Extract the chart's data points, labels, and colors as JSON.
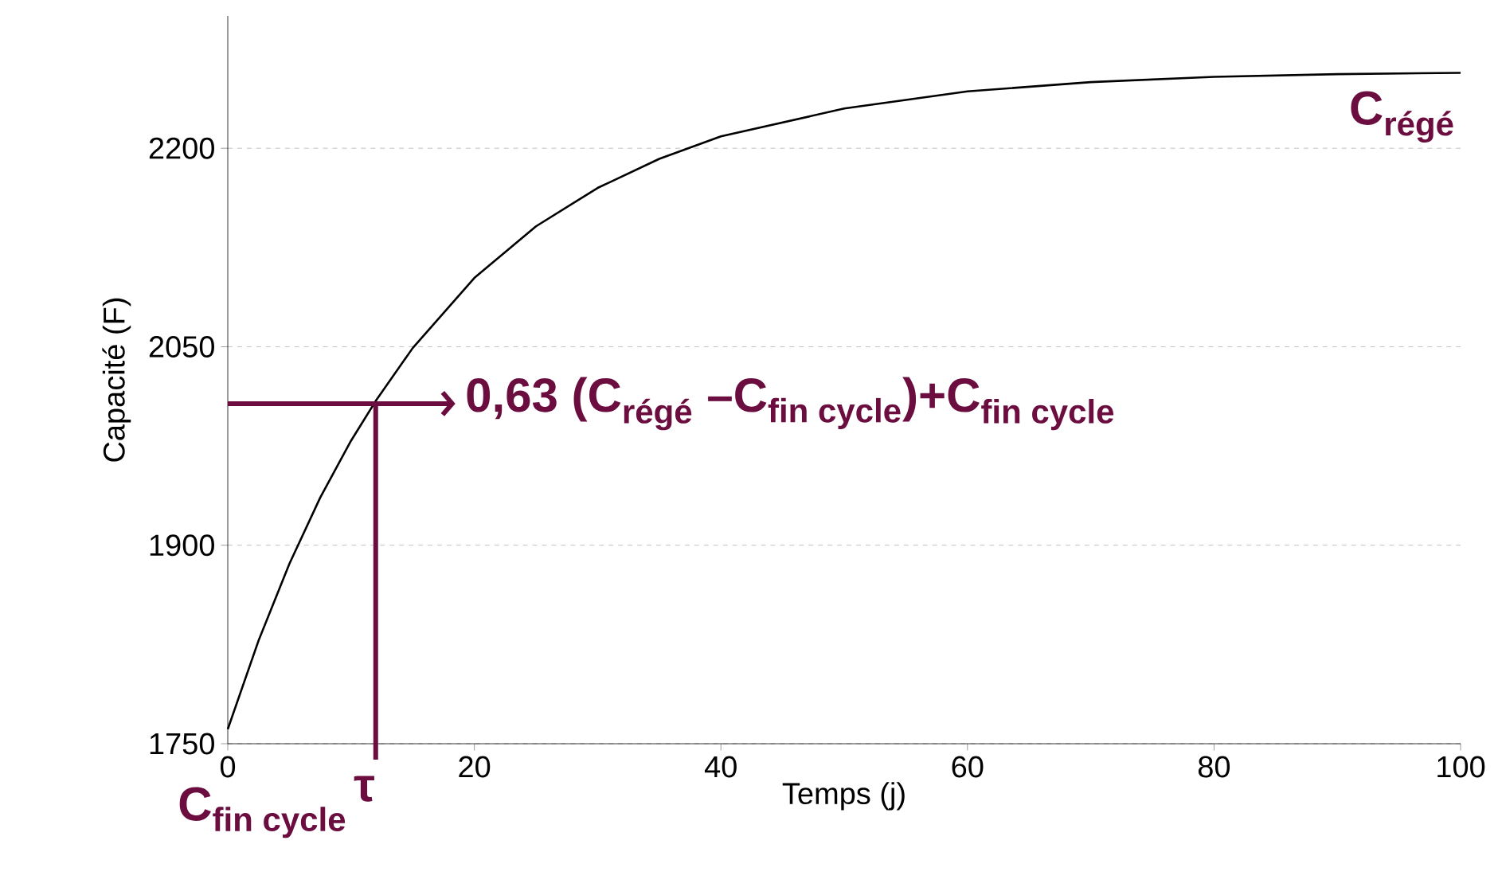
{
  "chart_data": {
    "type": "line",
    "xlabel": "Temps (j)",
    "ylabel": "Capacité (F)",
    "xlim": [
      0,
      100
    ],
    "ylim": [
      1750,
      2300
    ],
    "xticks": [
      0,
      20,
      40,
      60,
      80,
      100
    ],
    "yticks": [
      1750,
      1900,
      2050,
      2200
    ],
    "grid": "y",
    "series": [
      {
        "color": "#000000",
        "x": [
          0,
          2.5,
          5,
          7.5,
          10,
          12,
          15,
          20,
          25,
          30,
          35,
          40,
          50,
          60,
          70,
          80,
          90,
          100
        ],
        "values": [
          1761,
          1828,
          1886,
          1936,
          1979,
          2009,
          2049,
          2102,
          2141,
          2170,
          2192,
          2209,
          2230,
          2243,
          2250,
          2254,
          2256,
          2257
        ]
      }
    ],
    "ref_lines": [
      {
        "axis": "y",
        "value": 2007,
        "label": "\\text{0,63 (C}_{\\text{régé}}\\text{ –C}_{\\text{fin cycle}}\\text{)+C}_{\\text{fin cycle}}",
        "color": "#6b0d3f"
      },
      {
        "axis": "x",
        "value": 12,
        "label": "τ",
        "color": "#6b0d3f"
      }
    ],
    "annotations": [
      {
        "text": "\\text{C}_{\\text{régé}}",
        "x": 100,
        "y": 2257
      },
      "\\text{C}_{\\text{fin cycle}}"
    ]
  }
}
